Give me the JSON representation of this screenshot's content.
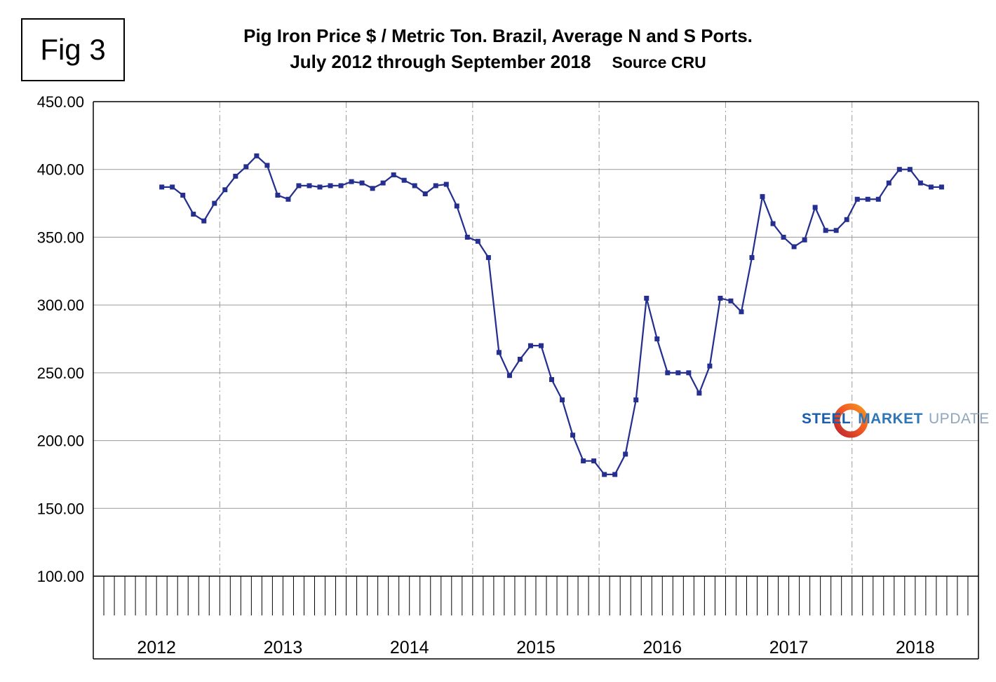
{
  "figure_label": "Fig 3",
  "header": {
    "title": "Pig Iron Price $ / Metric Ton. Brazil, Average N and S Ports.",
    "period": "July 2012 through September 2018",
    "source": "Source CRU"
  },
  "logo": {
    "word1": "STEEL",
    "word2": "MARKET",
    "word3": "UPDATE",
    "ring_color_start": "#c1272d",
    "ring_color_end": "#f7931e"
  },
  "chart_data": {
    "type": "line",
    "title": "Pig Iron Price $ / Metric Ton. Brazil, Average N and S Ports. July 2012 through September 2018",
    "source": "CRU",
    "ylabel": "Price $ / metric ton",
    "ylim": [
      100,
      450
    ],
    "ytick_step": 50,
    "ytick_format": "2dp",
    "x_axis_years": [
      "2012",
      "2013",
      "2014",
      "2015",
      "2016",
      "2017",
      "2018"
    ],
    "grid": {
      "horizontal": "solid",
      "vertical_year_lines": "dash-dot"
    },
    "legend": "none",
    "line_color": "#252F8F",
    "marker": "square",
    "months": [
      "2012-07",
      "2012-08",
      "2012-09",
      "2012-10",
      "2012-11",
      "2012-12",
      "2013-01",
      "2013-02",
      "2013-03",
      "2013-04",
      "2013-05",
      "2013-06",
      "2013-07",
      "2013-08",
      "2013-09",
      "2013-10",
      "2013-11",
      "2013-12",
      "2014-01",
      "2014-02",
      "2014-03",
      "2014-04",
      "2014-05",
      "2014-06",
      "2014-07",
      "2014-08",
      "2014-09",
      "2014-10",
      "2014-11",
      "2014-12",
      "2015-01",
      "2015-02",
      "2015-03",
      "2015-04",
      "2015-05",
      "2015-06",
      "2015-07",
      "2015-08",
      "2015-09",
      "2015-10",
      "2015-11",
      "2015-12",
      "2016-01",
      "2016-02",
      "2016-03",
      "2016-04",
      "2016-05",
      "2016-06",
      "2016-07",
      "2016-08",
      "2016-09",
      "2016-10",
      "2016-11",
      "2016-12",
      "2017-01",
      "2017-02",
      "2017-03",
      "2017-04",
      "2017-05",
      "2017-06",
      "2017-07",
      "2017-08",
      "2017-09",
      "2017-10",
      "2017-11",
      "2017-12",
      "2018-01",
      "2018-02",
      "2018-03",
      "2018-04",
      "2018-05",
      "2018-06",
      "2018-07",
      "2018-08",
      "2018-09"
    ],
    "values": [
      387,
      387,
      381,
      367,
      362,
      375,
      385,
      395,
      402,
      410,
      403,
      381,
      378,
      388,
      388,
      387,
      388,
      388,
      391,
      390,
      386,
      390,
      396,
      392,
      388,
      382,
      388,
      389,
      373,
      350,
      347,
      335,
      265,
      248,
      260,
      270,
      270,
      245,
      230,
      204,
      185,
      185,
      175,
      175,
      190,
      230,
      305,
      275,
      250,
      250,
      250,
      235,
      255,
      305,
      303,
      295,
      335,
      380,
      360,
      350,
      343,
      348,
      372,
      355,
      355,
      363,
      378,
      378,
      378,
      390,
      400,
      400,
      390,
      387,
      387
    ]
  }
}
